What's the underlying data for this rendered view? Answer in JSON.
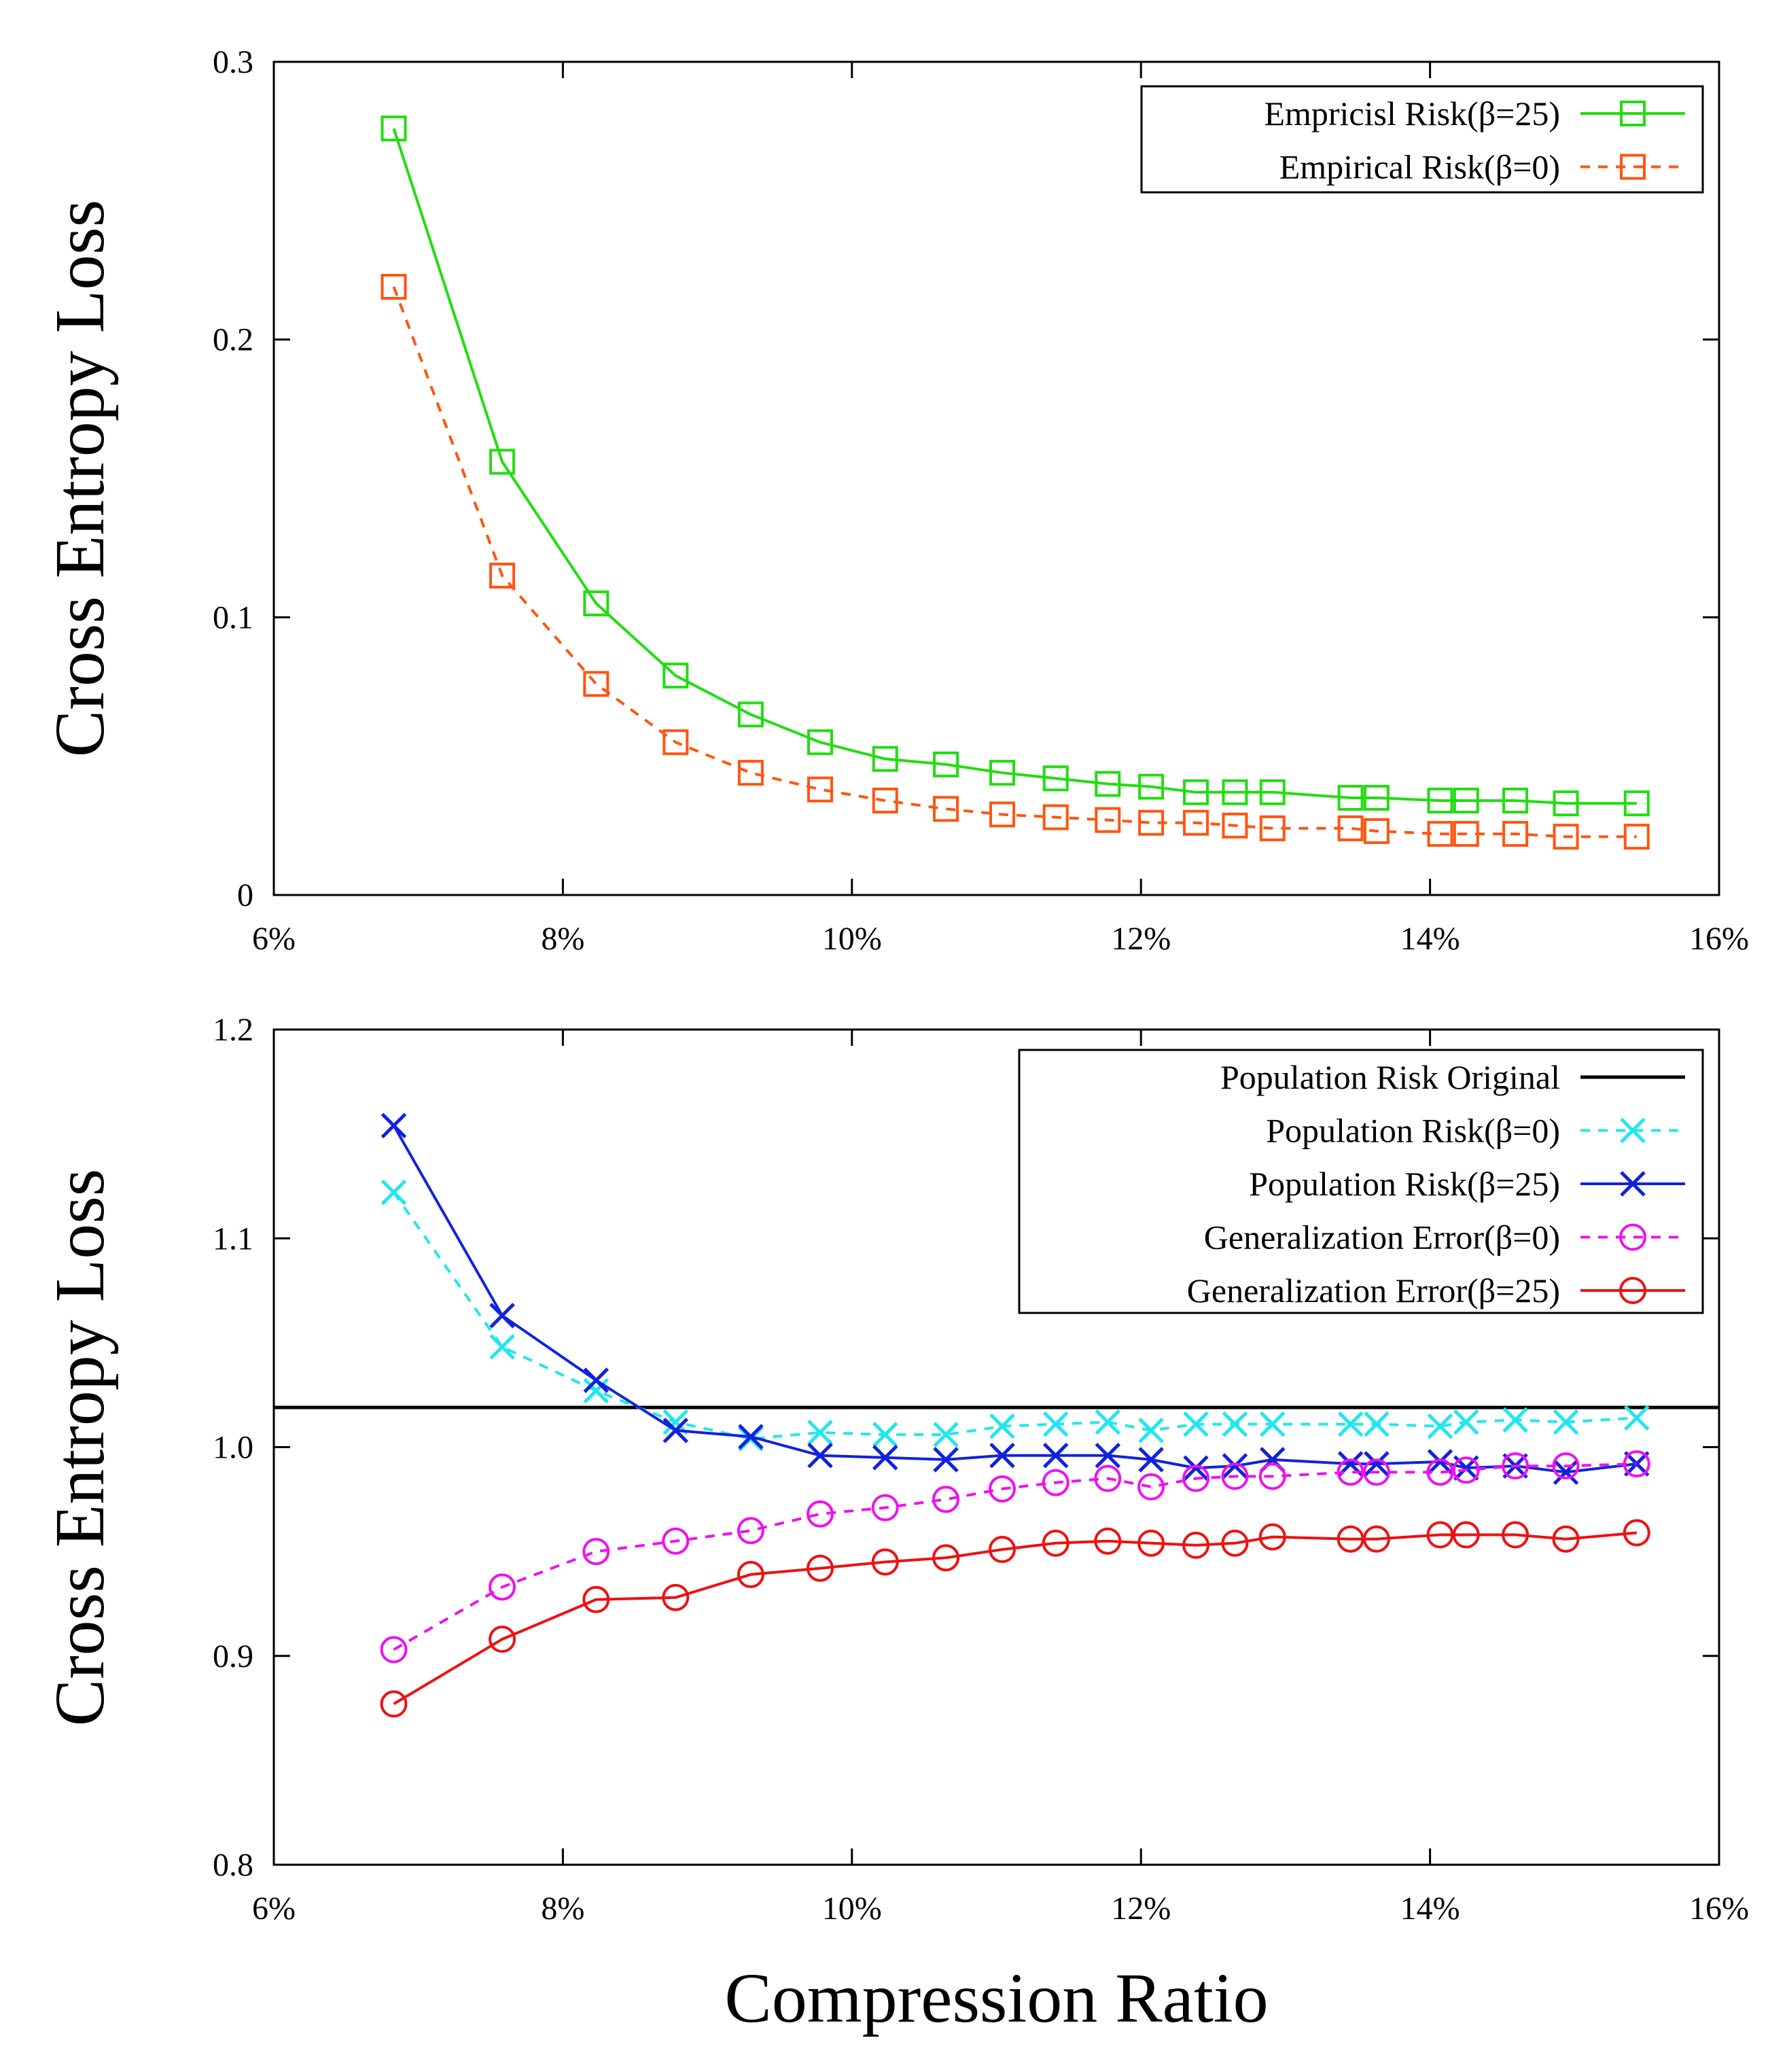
{
  "chart_data": [
    {
      "type": "line",
      "ylabel": "Cross Entropy Loss",
      "xlabel": "",
      "xlim": [
        0.06,
        0.16
      ],
      "ylim": [
        0,
        0.3
      ],
      "xticks": [
        "6%",
        "8%",
        "10%",
        "12%",
        "14%",
        "16%"
      ],
      "yticks": [
        "0",
        "0.1",
        "0.2",
        "0.3"
      ],
      "grid": false,
      "legend_position": "top-right",
      "series": [
        {
          "name": "Empricisl Risk(β=25)",
          "color": "#22dd11",
          "dash": "solid",
          "marker": "square",
          "x": [
            0.0683,
            0.0758,
            0.0823,
            0.0878,
            0.093,
            0.0978,
            0.1023,
            0.1065,
            0.1104,
            0.1141,
            0.1177,
            0.1207,
            0.1238,
            0.1265,
            0.1291,
            0.1345,
            0.1363,
            0.1407,
            0.1425,
            0.1459,
            0.1494,
            0.1543
          ],
          "y": [
            0.276,
            0.156,
            0.105,
            0.079,
            0.065,
            0.055,
            0.049,
            0.047,
            0.044,
            0.042,
            0.04,
            0.039,
            0.037,
            0.037,
            0.037,
            0.035,
            0.035,
            0.034,
            0.034,
            0.034,
            0.033,
            0.033
          ]
        },
        {
          "name": "Empirical Risk(β=0)",
          "color": "#ff5511",
          "dash": "dashed",
          "marker": "square",
          "x": [
            0.0683,
            0.0758,
            0.0823,
            0.0878,
            0.093,
            0.0978,
            0.1023,
            0.1065,
            0.1104,
            0.1141,
            0.1177,
            0.1207,
            0.1238,
            0.1265,
            0.1291,
            0.1345,
            0.1363,
            0.1407,
            0.1425,
            0.1459,
            0.1494,
            0.1543
          ],
          "y": [
            0.219,
            0.115,
            0.076,
            0.055,
            0.044,
            0.038,
            0.034,
            0.031,
            0.029,
            0.028,
            0.027,
            0.026,
            0.026,
            0.025,
            0.024,
            0.024,
            0.023,
            0.022,
            0.022,
            0.022,
            0.021,
            0.021
          ]
        }
      ]
    },
    {
      "type": "line",
      "ylabel": "Cross Entropy Loss",
      "xlabel": "Compression Ratio",
      "xlim": [
        0.06,
        0.16
      ],
      "ylim": [
        0.8,
        1.2
      ],
      "xticks": [
        "6%",
        "8%",
        "10%",
        "12%",
        "14%",
        "16%"
      ],
      "yticks": [
        "0.8",
        "0.9",
        "1.0",
        "1.1",
        "1.2"
      ],
      "grid": false,
      "legend_position": "top-right",
      "series": [
        {
          "name": "Population Risk Original",
          "color": "#000000",
          "dash": "solid",
          "marker": "none",
          "x": [
            0.06,
            0.16
          ],
          "y": [
            1.019,
            1.019
          ]
        },
        {
          "name": "Population Risk(β=0)",
          "color": "#22e6ee",
          "dash": "dashed",
          "marker": "x",
          "x": [
            0.0683,
            0.0758,
            0.0823,
            0.0878,
            0.093,
            0.0978,
            0.1023,
            0.1065,
            0.1104,
            0.1141,
            0.1177,
            0.1207,
            0.1238,
            0.1265,
            0.1291,
            0.1345,
            0.1363,
            0.1407,
            0.1425,
            0.1459,
            0.1494,
            0.1543
          ],
          "y": [
            1.122,
            1.048,
            1.027,
            1.012,
            1.004,
            1.007,
            1.006,
            1.006,
            1.01,
            1.011,
            1.012,
            1.008,
            1.011,
            1.011,
            1.011,
            1.011,
            1.011,
            1.01,
            1.012,
            1.013,
            1.012,
            1.014
          ]
        },
        {
          "name": "Population Risk(β=25)",
          "color": "#1122dd",
          "dash": "solid",
          "marker": "x",
          "x": [
            0.0683,
            0.0758,
            0.0823,
            0.0878,
            0.093,
            0.0978,
            0.1023,
            0.1065,
            0.1104,
            0.1141,
            0.1177,
            0.1207,
            0.1238,
            0.1265,
            0.1291,
            0.1345,
            0.1363,
            0.1407,
            0.1425,
            0.1459,
            0.1494,
            0.1543
          ],
          "y": [
            1.154,
            1.063,
            1.032,
            1.008,
            1.005,
            0.996,
            0.995,
            0.994,
            0.996,
            0.996,
            0.996,
            0.994,
            0.99,
            0.991,
            0.994,
            0.992,
            0.992,
            0.993,
            0.99,
            0.991,
            0.988,
            0.992
          ]
        },
        {
          "name": "Generalization Error(β=0)",
          "color": "#ee11ee",
          "dash": "dashed",
          "marker": "circle",
          "x": [
            0.0683,
            0.0758,
            0.0823,
            0.0878,
            0.093,
            0.0978,
            0.1023,
            0.1065,
            0.1104,
            0.1141,
            0.1177,
            0.1207,
            0.1238,
            0.1265,
            0.1291,
            0.1345,
            0.1363,
            0.1407,
            0.1425,
            0.1459,
            0.1494,
            0.1543
          ],
          "y": [
            0.903,
            0.933,
            0.95,
            0.955,
            0.96,
            0.968,
            0.971,
            0.975,
            0.98,
            0.983,
            0.985,
            0.981,
            0.985,
            0.986,
            0.986,
            0.988,
            0.988,
            0.988,
            0.989,
            0.991,
            0.991,
            0.992
          ]
        },
        {
          "name": "Generalization Error(β=25)",
          "color": "#ee1111",
          "dash": "solid",
          "marker": "circle",
          "x": [
            0.0683,
            0.0758,
            0.0823,
            0.0878,
            0.093,
            0.0978,
            0.1023,
            0.1065,
            0.1104,
            0.1141,
            0.1177,
            0.1207,
            0.1238,
            0.1265,
            0.1291,
            0.1345,
            0.1363,
            0.1407,
            0.1425,
            0.1459,
            0.1494,
            0.1543
          ],
          "y": [
            0.877,
            0.908,
            0.927,
            0.928,
            0.939,
            0.942,
            0.945,
            0.947,
            0.951,
            0.954,
            0.955,
            0.954,
            0.953,
            0.954,
            0.957,
            0.956,
            0.956,
            0.958,
            0.958,
            0.958,
            0.956,
            0.959
          ]
        }
      ]
    }
  ]
}
